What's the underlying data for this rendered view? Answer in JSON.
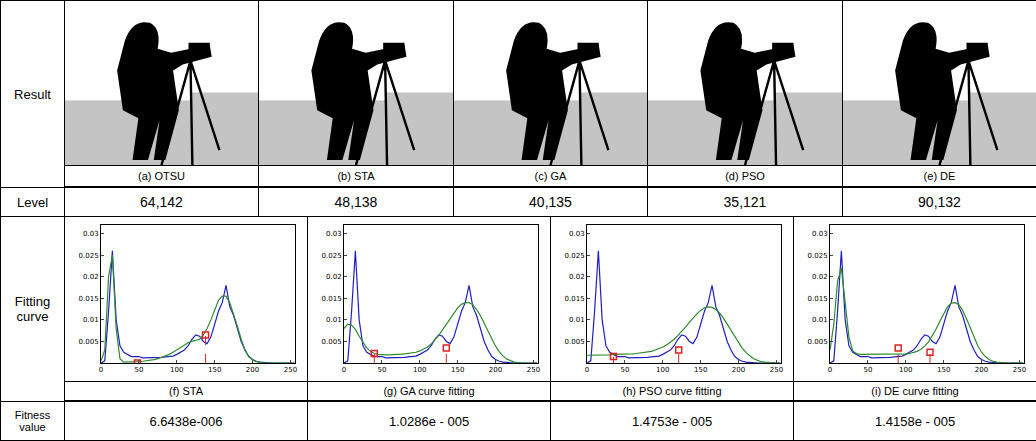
{
  "table": {
    "row_labels": [
      "Result",
      "Level",
      "Fitting curve",
      "Fitness value"
    ],
    "results": [
      {
        "caption": "(a)  OTSU",
        "level": "64,142"
      },
      {
        "caption": "(b)  STA",
        "level": "48,138"
      },
      {
        "caption": "(c)  GA",
        "level": "40,135"
      },
      {
        "caption": "(d)  PSO",
        "level": "35,121"
      },
      {
        "caption": "(e)  DE",
        "level": "90,132"
      }
    ],
    "fitness_values": [
      "6.6438e-006",
      "1.0286e - 005",
      "1.4753e - 005",
      "1.4158e - 005"
    ]
  },
  "chart_data": [
    {
      "type": "line",
      "caption": "(f)  STA",
      "xlim": [
        0,
        256
      ],
      "xticks": [
        0,
        50,
        100,
        150,
        200,
        250
      ],
      "ylim": [
        0,
        0.032
      ],
      "yticks": [
        0.005,
        0.01,
        0.015,
        0.02,
        0.025,
        0.03
      ],
      "grid": false,
      "x": [
        0,
        5,
        10,
        15,
        20,
        25,
        30,
        35,
        40,
        45,
        50,
        55,
        60,
        65,
        70,
        75,
        80,
        85,
        90,
        95,
        100,
        105,
        110,
        115,
        120,
        125,
        130,
        135,
        140,
        145,
        150,
        155,
        160,
        165,
        170,
        175,
        180,
        185,
        190,
        195,
        200,
        205,
        210,
        215,
        220,
        225,
        230,
        235,
        240,
        245,
        250,
        255
      ],
      "series": [
        {
          "color": "#1f1fbf",
          "values": [
            0,
            0.0005,
            0.012,
            0.026,
            0.01,
            0.004,
            0.0025,
            0.002,
            0.0015,
            0.0015,
            0.0015,
            0.0012,
            0.0012,
            0.0012,
            0.0012,
            0.0013,
            0.0013,
            0.0014,
            0.0015,
            0.0016,
            0.002,
            0.0025,
            0.003,
            0.004,
            0.0055,
            0.0065,
            0.0062,
            0.005,
            0.0045,
            0.006,
            0.009,
            0.012,
            0.014,
            0.018,
            0.013,
            0.011,
            0.008,
            0.005,
            0.003,
            0.0015,
            0.0008,
            0.0004,
            0.0002,
            0.0001,
            0,
            0,
            0,
            0,
            0,
            0,
            0,
            0
          ]
        },
        {
          "color": "#2e8b2e",
          "values": [
            0.0005,
            0.003,
            0.02,
            0.025,
            0.008,
            0.001,
            0.0002,
            0.0002,
            0.0002,
            0.0003,
            0.0003,
            0.0004,
            0.0005,
            0.0006,
            0.0008,
            0.001,
            0.0013,
            0.0016,
            0.002,
            0.0025,
            0.003,
            0.0036,
            0.0042,
            0.0047,
            0.005,
            0.0052,
            0.0055,
            0.0065,
            0.008,
            0.01,
            0.0125,
            0.0145,
            0.0155,
            0.0155,
            0.014,
            0.0115,
            0.0085,
            0.0055,
            0.003,
            0.0015,
            0.0007,
            0.0003,
            0.0001,
            0,
            0,
            0,
            0,
            0,
            0,
            0,
            0,
            0
          ]
        },
        {
          "type": "scatter",
          "marker": "square",
          "line_style": "dashed",
          "color": "#e02020",
          "x": [
            48,
            138
          ],
          "values": [
            0,
            0.0065
          ]
        }
      ]
    },
    {
      "type": "line",
      "caption": "(g) GA curve fitting",
      "xlim": [
        0,
        256
      ],
      "xticks": [
        0,
        50,
        100,
        150,
        200,
        250
      ],
      "ylim": [
        0,
        0.032
      ],
      "yticks": [
        0.005,
        0.01,
        0.015,
        0.02,
        0.025,
        0.03
      ],
      "grid": false,
      "x": [
        0,
        5,
        10,
        15,
        20,
        25,
        30,
        35,
        40,
        45,
        50,
        55,
        60,
        65,
        70,
        75,
        80,
        85,
        90,
        95,
        100,
        105,
        110,
        115,
        120,
        125,
        130,
        135,
        140,
        145,
        150,
        155,
        160,
        165,
        170,
        175,
        180,
        185,
        190,
        195,
        200,
        205,
        210,
        215,
        220,
        225,
        230,
        235,
        240,
        245,
        250,
        255
      ],
      "series": [
        {
          "color": "#1f1fbf",
          "values": [
            0,
            0.0005,
            0.012,
            0.026,
            0.01,
            0.004,
            0.0025,
            0.002,
            0.0015,
            0.0015,
            0.0015,
            0.0012,
            0.0012,
            0.0012,
            0.0012,
            0.0013,
            0.0013,
            0.0014,
            0.0015,
            0.0016,
            0.002,
            0.0025,
            0.003,
            0.004,
            0.0055,
            0.0065,
            0.0062,
            0.005,
            0.0045,
            0.006,
            0.009,
            0.012,
            0.014,
            0.018,
            0.013,
            0.011,
            0.008,
            0.005,
            0.003,
            0.0015,
            0.0008,
            0.0004,
            0.0002,
            0.0001,
            0,
            0,
            0,
            0,
            0,
            0,
            0,
            0
          ]
        },
        {
          "color": "#2e8b2e",
          "values": [
            0.008,
            0.009,
            0.0088,
            0.0078,
            0.0062,
            0.0047,
            0.0035,
            0.0027,
            0.0022,
            0.002,
            0.0019,
            0.0019,
            0.0019,
            0.002,
            0.002,
            0.002,
            0.0021,
            0.0022,
            0.0023,
            0.0025,
            0.0028,
            0.0032,
            0.0037,
            0.0044,
            0.0053,
            0.0064,
            0.0077,
            0.009,
            0.0104,
            0.0117,
            0.0128,
            0.0136,
            0.014,
            0.014,
            0.0135,
            0.0124,
            0.011,
            0.0092,
            0.0073,
            0.0055,
            0.0039,
            0.0026,
            0.0016,
            0.0009,
            0.0005,
            0.0002,
            0.0001,
            0,
            0,
            0,
            0,
            0
          ]
        },
        {
          "type": "scatter",
          "marker": "square",
          "line_style": "dashed",
          "color": "#e02020",
          "x": [
            40,
            135
          ],
          "values": [
            0.0022,
            0.0035
          ]
        }
      ]
    },
    {
      "type": "line",
      "caption": "(h) PSO curve fitting",
      "xlim": [
        0,
        256
      ],
      "xticks": [
        0,
        50,
        100,
        150,
        200,
        250
      ],
      "ylim": [
        0,
        0.032
      ],
      "yticks": [
        0.005,
        0.01,
        0.015,
        0.02,
        0.025,
        0.03
      ],
      "grid": false,
      "x": [
        0,
        5,
        10,
        15,
        20,
        25,
        30,
        35,
        40,
        45,
        50,
        55,
        60,
        65,
        70,
        75,
        80,
        85,
        90,
        95,
        100,
        105,
        110,
        115,
        120,
        125,
        130,
        135,
        140,
        145,
        150,
        155,
        160,
        165,
        170,
        175,
        180,
        185,
        190,
        195,
        200,
        205,
        210,
        215,
        220,
        225,
        230,
        235,
        240,
        245,
        250,
        255
      ],
      "series": [
        {
          "color": "#1f1fbf",
          "values": [
            0,
            0.0005,
            0.012,
            0.026,
            0.01,
            0.004,
            0.0025,
            0.002,
            0.0015,
            0.0015,
            0.0015,
            0.0012,
            0.0012,
            0.0012,
            0.0012,
            0.0013,
            0.0013,
            0.0014,
            0.0015,
            0.0016,
            0.002,
            0.0025,
            0.003,
            0.004,
            0.0055,
            0.0065,
            0.0062,
            0.005,
            0.0045,
            0.006,
            0.009,
            0.012,
            0.014,
            0.018,
            0.013,
            0.011,
            0.008,
            0.005,
            0.003,
            0.0015,
            0.0008,
            0.0004,
            0.0002,
            0.0001,
            0,
            0,
            0,
            0,
            0,
            0,
            0,
            0
          ]
        },
        {
          "color": "#2e8b2e",
          "values": [
            0.0018,
            0.0018,
            0.0018,
            0.0019,
            0.0019,
            0.0019,
            0.0019,
            0.002,
            0.002,
            0.002,
            0.002,
            0.0021,
            0.0021,
            0.0022,
            0.0023,
            0.0024,
            0.0025,
            0.0027,
            0.003,
            0.0033,
            0.0037,
            0.0042,
            0.0048,
            0.0055,
            0.0064,
            0.0073,
            0.0083,
            0.0094,
            0.0105,
            0.0114,
            0.0122,
            0.0128,
            0.013,
            0.0129,
            0.0124,
            0.0116,
            0.0104,
            0.009,
            0.0075,
            0.006,
            0.0046,
            0.0034,
            0.0024,
            0.0016,
            0.001,
            0.0006,
            0.0003,
            0.0002,
            0.0001,
            0,
            0,
            0
          ]
        },
        {
          "type": "scatter",
          "marker": "square",
          "line_style": "dashed",
          "color": "#e02020",
          "x": [
            35,
            121
          ],
          "values": [
            0.0015,
            0.003
          ]
        }
      ]
    },
    {
      "type": "line",
      "caption": "(i) DE curve fitting",
      "xlim": [
        0,
        256
      ],
      "xticks": [
        0,
        50,
        100,
        150,
        200,
        250
      ],
      "ylim": [
        0,
        0.032
      ],
      "yticks": [
        0.005,
        0.01,
        0.015,
        0.02,
        0.025,
        0.03
      ],
      "grid": false,
      "x": [
        0,
        5,
        10,
        15,
        20,
        25,
        30,
        35,
        40,
        45,
        50,
        55,
        60,
        65,
        70,
        75,
        80,
        85,
        90,
        95,
        100,
        105,
        110,
        115,
        120,
        125,
        130,
        135,
        140,
        145,
        150,
        155,
        160,
        165,
        170,
        175,
        180,
        185,
        190,
        195,
        200,
        205,
        210,
        215,
        220,
        225,
        230,
        235,
        240,
        245,
        250,
        255
      ],
      "series": [
        {
          "color": "#1f1fbf",
          "values": [
            0,
            0.0005,
            0.012,
            0.026,
            0.01,
            0.004,
            0.0025,
            0.002,
            0.0015,
            0.0015,
            0.0015,
            0.0012,
            0.0012,
            0.0012,
            0.0012,
            0.0013,
            0.0013,
            0.0014,
            0.0015,
            0.0016,
            0.002,
            0.0025,
            0.003,
            0.004,
            0.0055,
            0.0065,
            0.0062,
            0.005,
            0.0045,
            0.006,
            0.009,
            0.012,
            0.014,
            0.018,
            0.013,
            0.011,
            0.008,
            0.005,
            0.003,
            0.0015,
            0.0008,
            0.0004,
            0.0002,
            0.0001,
            0,
            0,
            0,
            0,
            0,
            0,
            0,
            0
          ]
        },
        {
          "color": "#2e8b2e",
          "values": [
            0.003,
            0.009,
            0.019,
            0.022,
            0.014,
            0.006,
            0.0028,
            0.0022,
            0.002,
            0.002,
            0.002,
            0.002,
            0.002,
            0.002,
            0.002,
            0.002,
            0.002,
            0.002,
            0.002,
            0.002,
            0.0021,
            0.0022,
            0.0024,
            0.0027,
            0.0032,
            0.0039,
            0.0049,
            0.0063,
            0.0079,
            0.0097,
            0.0115,
            0.013,
            0.0139,
            0.014,
            0.0135,
            0.0122,
            0.0103,
            0.0081,
            0.0059,
            0.004,
            0.0025,
            0.0015,
            0.0008,
            0.0004,
            0.0002,
            0.0001,
            0,
            0,
            0,
            0,
            0,
            0
          ]
        },
        {
          "type": "scatter",
          "marker": "square",
          "line_style": "dashed",
          "color": "#e02020",
          "x": [
            90,
            132
          ],
          "values": [
            0.0035,
            0.0025
          ]
        }
      ]
    }
  ]
}
